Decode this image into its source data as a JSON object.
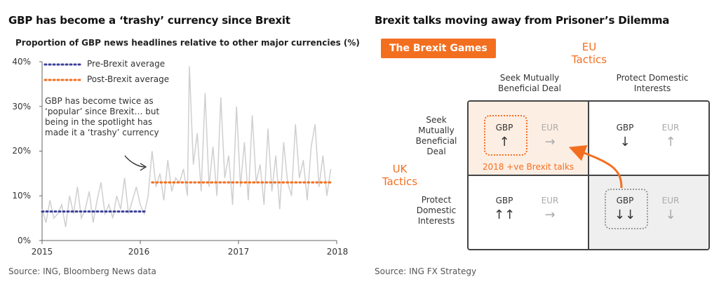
{
  "left": {
    "title": "GBP has become a ‘trashy’ currency since Brexit",
    "subtitle": "Proportion of GBP news headlines relative to other major currencies (%)",
    "source": "Source: ING, Bloomberg News data",
    "annotation": [
      "GBP has become twice as",
      "‘popular’ since Brexit… but",
      "being in the spotlight has",
      "made it a ‘trashy’ currency"
    ],
    "colors": {
      "line": "#cfcfcf",
      "pre": "#3b3f99",
      "post": "#f36f20"
    }
  },
  "chart_data": {
    "type": "line",
    "title": "GBP has become a ‘trashy’ currency since Brexit",
    "subtitle": "Proportion of GBP news headlines relative to other major currencies (%)",
    "xlabel": "",
    "ylabel": "",
    "ylim": [
      0,
      40
    ],
    "xlim": [
      2015,
      2018
    ],
    "yticks": [
      "0%",
      "10%",
      "20%",
      "30%",
      "40%"
    ],
    "xticks": [
      "2015",
      "2016",
      "2017",
      "2018"
    ],
    "grid": false,
    "legend_position": "top-left",
    "series": [
      {
        "x": [
          2015.0,
          2015.04,
          2015.08,
          2015.12,
          2015.16,
          2015.2,
          2015.24,
          2015.28,
          2015.32,
          2015.36,
          2015.4,
          2015.44,
          2015.48,
          2015.52,
          2015.56,
          2015.6,
          2015.64,
          2015.68,
          2015.72,
          2015.76,
          2015.8,
          2015.84,
          2015.88,
          2015.92,
          2015.96,
          2016.0,
          2016.04,
          2016.08,
          2016.12,
          2016.16,
          2016.2,
          2016.24,
          2016.28,
          2016.32,
          2016.36,
          2016.4,
          2016.44,
          2016.48,
          2016.5,
          2016.54,
          2016.58,
          2016.62,
          2016.66,
          2016.7,
          2016.74,
          2016.78,
          2016.82,
          2016.86,
          2016.9,
          2016.94,
          2016.98,
          2017.02,
          2017.06,
          2017.1,
          2017.14,
          2017.18,
          2017.22,
          2017.26,
          2017.3,
          2017.34,
          2017.38,
          2017.42,
          2017.46,
          2017.5,
          2017.54,
          2017.58,
          2017.62,
          2017.66,
          2017.7,
          2017.74,
          2017.78,
          2017.82,
          2017.86,
          2017.9,
          2017.94
        ],
        "y": [
          7,
          4,
          9,
          5,
          6,
          8,
          3,
          10,
          6,
          12,
          5,
          7,
          11,
          4,
          9,
          13,
          6,
          8,
          5,
          10,
          7,
          14,
          6,
          9,
          12,
          8,
          6,
          10,
          20,
          12,
          15,
          9,
          18,
          11,
          14,
          13,
          16,
          10,
          39,
          17,
          24,
          11,
          33,
          12,
          21,
          10,
          32,
          14,
          19,
          8,
          30,
          12,
          22,
          9,
          28,
          13,
          17,
          8,
          25,
          11,
          19,
          7,
          22,
          13,
          10,
          26,
          14,
          18,
          9,
          21,
          26,
          12,
          19,
          10,
          16
        ]
      }
    ],
    "averages": [
      {
        "name": "Pre-Brexit average",
        "value": 6.5,
        "from": 2015.0,
        "to": 2016.05,
        "color": "#3b3f99"
      },
      {
        "name": "Post-Brexit average",
        "value": 13,
        "from": 2016.12,
        "to": 2017.95,
        "color": "#f36f20"
      }
    ]
  },
  "right": {
    "title": "Brexit talks moving away from Prisoner’s Dilemma",
    "badge": "The Brexit Games",
    "eu_label": [
      "EU",
      "Tactics"
    ],
    "uk_label": [
      "UK",
      "Tactics"
    ],
    "col_heads": [
      [
        "Seek Mutually",
        "Beneficial Deal"
      ],
      [
        "Protect Domestic",
        "Interests"
      ]
    ],
    "row_heads": [
      [
        "Seek",
        "Mutually",
        "Beneficial",
        "Deal"
      ],
      [
        "Protect",
        "Domestic",
        "Interests"
      ]
    ],
    "gbp": "GBP",
    "eur": "EUR",
    "cells": [
      {
        "gbp_arrow": "↑",
        "eur_arrow": "→"
      },
      {
        "gbp_arrow": "↓",
        "eur_arrow": "↑"
      },
      {
        "gbp_arrow": "↑↑",
        "eur_arrow": "→"
      },
      {
        "gbp_arrow": "↓↓",
        "eur_arrow": "↓"
      }
    ],
    "cell_note": "2018 +ve Brexit talks",
    "source": "Source: ING FX Strategy",
    "colors": {
      "accent": "#f36f20",
      "highlight_fill": "#fdeee3",
      "shaded_fill": "#efefef"
    }
  }
}
